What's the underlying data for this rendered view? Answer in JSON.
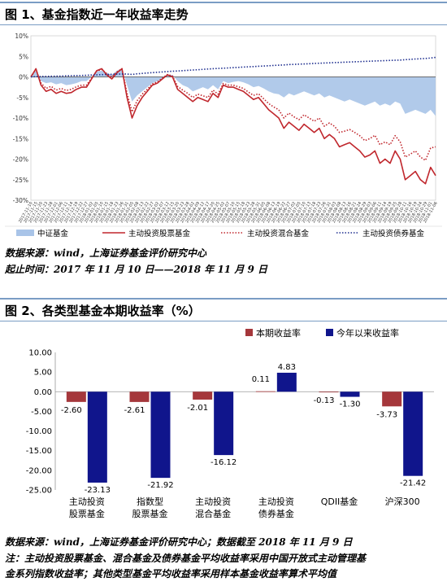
{
  "figure1": {
    "title": "图 1、基金指数近一年收益率走势",
    "source": "数据来源：wind，上海证券基金评价研究中心",
    "period": "起止时间：2017 年 11 月 10 日——2018 年 11 月 9 日"
  },
  "figure2": {
    "title": "图 2、各类型基金本期收益率（%）",
    "source": "数据来源：wind，上海证券基金评价研究中心；数据截至 2018 年 11 月 9 日",
    "note_line1": "注：主动投资股票基金、混合基金及债券基金平均收益率采用中国开放式主动管理基",
    "note_line2": "金系列指数收益率；其他类型基金平均收益率采用样本基金收益率算术平均值"
  },
  "colors": {
    "area": "#a9c4e8",
    "stock": "#c0272d",
    "mixed": "#c0272d",
    "bond": "#1f2f8f",
    "bar_period": "#a5373b",
    "bar_ytd": "#10158c",
    "title_rule": "#7a9cc4"
  },
  "chart_data": [
    {
      "type": "line",
      "ylim": [
        -30,
        10
      ],
      "yticks": [
        10,
        5,
        0,
        -5,
        -10,
        -15,
        -20,
        -25,
        -30
      ],
      "ytick_labels": [
        "10%",
        "5%",
        "0%",
        "-5%",
        "-10%",
        "-15%",
        "-20%",
        "-25%",
        "-30%"
      ],
      "x_labels": [
        "2017-11-10",
        "2017-11-15",
        "2017-11-20",
        "2017-11-23",
        "2017-11-28",
        "2017-12-01",
        "2017-12-06",
        "2017-12-11",
        "2017-12-14",
        "2017-12-19",
        "2017-12-22",
        "2017-12-27",
        "2018-01-02",
        "2018-01-05",
        "2018-01-10",
        "2018-01-15",
        "2018-01-18",
        "2018-01-23",
        "2018-01-26",
        "2018-01-31",
        "2018-02-05",
        "2018-02-08",
        "2018-02-13",
        "2018-02-22",
        "2018-02-27",
        "2018-03-02",
        "2018-03-07",
        "2018-03-12",
        "2018-03-15",
        "2018-03-20",
        "2018-03-23",
        "2018-03-28",
        "2018-04-02",
        "2018-04-09",
        "2018-04-12",
        "2018-04-17",
        "2018-04-20",
        "2018-04-25",
        "2018-05-02",
        "2018-05-07",
        "2018-05-10",
        "2018-05-15",
        "2018-05-18",
        "2018-05-23",
        "2018-05-28",
        "2018-05-31",
        "2018-06-05",
        "2018-06-08",
        "2018-06-13",
        "2018-06-19",
        "2018-06-22",
        "2018-06-27",
        "2018-07-02",
        "2018-07-05",
        "2018-07-10",
        "2018-07-13",
        "2018-07-18",
        "2018-07-23",
        "2018-07-26",
        "2018-07-31",
        "2018-08-03",
        "2018-08-08",
        "2018-08-13",
        "2018-08-16",
        "2018-08-21",
        "2018-08-24",
        "2018-08-29",
        "2018-09-03",
        "2018-09-06",
        "2018-09-11",
        "2018-09-14",
        "2018-09-19",
        "2018-09-25",
        "2018-09-28",
        "2018-10-11",
        "2018-10-16",
        "2018-10-19",
        "2018-10-24",
        "2018-10-29",
        "2018-11-01",
        "2018-11-06"
      ],
      "legend": [
        "中证基金",
        "主动投资股票基金",
        "主动投资混合基金",
        "主动投资债券基金"
      ],
      "legend_position": "bottom",
      "series": [
        {
          "name": "中证基金",
          "style": "area",
          "values": [
            0,
            1.5,
            -1,
            -1.5,
            -1.3,
            -1.8,
            -1.5,
            -2,
            -1.8,
            -1.5,
            -1,
            -1,
            0,
            1.3,
            1.5,
            1,
            0.5,
            1.5,
            2,
            -2,
            -6,
            -4.5,
            -3.5,
            -2.5,
            -1.5,
            -1,
            -0.5,
            0.5,
            0.5,
            -1,
            -2,
            -2.5,
            -3.5,
            -3,
            -2.5,
            -3,
            -2,
            -3,
            -1,
            -1.5,
            -1.2,
            -1,
            -1.3,
            -1.8,
            -2.5,
            -2.2,
            -2.8,
            -3.5,
            -4,
            -4.2,
            -5,
            -4,
            -4.5,
            -4,
            -3.5,
            -4,
            -4.5,
            -4,
            -5,
            -4.5,
            -5,
            -5.5,
            -6,
            -5.5,
            -6,
            -6.5,
            -7,
            -6.5,
            -6,
            -7,
            -6.5,
            -7,
            -6,
            -6.5,
            -9,
            -8.5,
            -8,
            -8.5,
            -9,
            -8,
            -9.5
          ]
        },
        {
          "name": "主动投资股票基金",
          "style": "solid",
          "values": [
            0,
            2,
            -2,
            -3.5,
            -3,
            -4,
            -3.5,
            -4,
            -3.8,
            -3,
            -2.5,
            -2.5,
            -0.5,
            1.5,
            2,
            0.5,
            -0.5,
            1,
            2,
            -5,
            -10,
            -7,
            -5,
            -3.5,
            -2,
            -1.5,
            -0.5,
            0.5,
            0,
            -3,
            -4,
            -5,
            -6,
            -5,
            -5.5,
            -6,
            -4,
            -5,
            -2,
            -2.5,
            -2.5,
            -3,
            -3.5,
            -4.5,
            -5.5,
            -5,
            -6.5,
            -8,
            -9,
            -10,
            -12.5,
            -11,
            -12,
            -13,
            -11.5,
            -12.5,
            -13.5,
            -12.5,
            -15,
            -14,
            -15,
            -17,
            -16.5,
            -16,
            -17,
            -18,
            -19.5,
            -19,
            -18,
            -21,
            -20,
            -21,
            -18,
            -20,
            -25,
            -24,
            -23,
            -25,
            -26,
            -22,
            -24
          ]
        },
        {
          "name": "主动投资混合基金",
          "style": "dotted",
          "values": [
            0,
            1.8,
            -1.5,
            -2.8,
            -2.3,
            -3.2,
            -2.8,
            -3.3,
            -3,
            -2.4,
            -2,
            -2,
            -0.3,
            1.4,
            1.8,
            0.8,
            0,
            1.2,
            2,
            -4,
            -8.5,
            -5.8,
            -4.2,
            -3,
            -1.7,
            -1.2,
            -0.3,
            0.6,
            0.2,
            -2.3,
            -3.2,
            -4,
            -5,
            -4.2,
            -4.6,
            -5,
            -3.2,
            -4.2,
            -1.6,
            -2,
            -2,
            -2.4,
            -2.8,
            -3.7,
            -4.5,
            -4.1,
            -5.3,
            -6.5,
            -7.3,
            -8,
            -10,
            -8.8,
            -9.7,
            -10.4,
            -9.2,
            -10,
            -10.8,
            -10,
            -12,
            -11.2,
            -12,
            -13.5,
            -13.2,
            -12.8,
            -13.5,
            -14.3,
            -15.5,
            -15,
            -14.2,
            -16.5,
            -15.8,
            -16.5,
            -14.3,
            -15.8,
            -19.5,
            -18.8,
            -18,
            -19.5,
            -20.3,
            -17.3,
            -17
          ]
        },
        {
          "name": "主动投资债券基金",
          "style": "dotted",
          "values": [
            0,
            0.05,
            0.1,
            0.12,
            0.15,
            0.18,
            0.2,
            0.25,
            0.3,
            0.32,
            0.35,
            0.4,
            0.45,
            0.5,
            0.55,
            0.6,
            0.63,
            0.68,
            0.72,
            0.7,
            0.6,
            0.75,
            0.85,
            0.95,
            1.05,
            1.12,
            1.2,
            1.3,
            1.38,
            1.45,
            1.52,
            1.6,
            1.68,
            1.75,
            1.85,
            1.92,
            2,
            2.05,
            2.12,
            2.18,
            2.25,
            2.32,
            2.4,
            2.45,
            2.52,
            2.6,
            2.65,
            2.72,
            2.8,
            2.85,
            2.92,
            3,
            3.05,
            3.1,
            3.15,
            3.2,
            3.28,
            3.32,
            3.38,
            3.42,
            3.48,
            3.52,
            3.58,
            3.62,
            3.68,
            3.72,
            3.78,
            3.82,
            3.88,
            3.92,
            3.96,
            4.02,
            4.06,
            4.1,
            4.2,
            4.28,
            4.35,
            4.42,
            4.5,
            4.6,
            4.75
          ]
        }
      ]
    },
    {
      "type": "bar",
      "categories": [
        "主动投资\n股票基金",
        "指数型\n股票基金",
        "主动投资\n混合基金",
        "主动投资\n债券基金",
        "QDII基金",
        "沪深300"
      ],
      "ylim": [
        -25,
        10
      ],
      "yticks": [
        10,
        5,
        0,
        -5,
        -10,
        -15,
        -20,
        -25
      ],
      "ytick_labels": [
        "10.00",
        "5.00",
        "0.00",
        "-5.00",
        "-10.00",
        "-15.00",
        "-20.00",
        "-25.00"
      ],
      "legend_position": "top-right",
      "series": [
        {
          "name": "本期收益率",
          "values": [
            -2.6,
            -2.61,
            -2.01,
            0.11,
            -0.13,
            -3.73
          ],
          "labels": [
            "-2.60",
            "-2.61",
            "-2.01",
            "0.11",
            "-0.13",
            "-3.73"
          ]
        },
        {
          "name": "今年以来收益率",
          "values": [
            -23.13,
            -21.92,
            -16.12,
            4.83,
            -1.3,
            -21.42
          ],
          "labels": [
            "-23.13",
            "-21.92",
            "-16.12",
            "4.83",
            "-1.30",
            "-21.42"
          ]
        }
      ]
    }
  ]
}
